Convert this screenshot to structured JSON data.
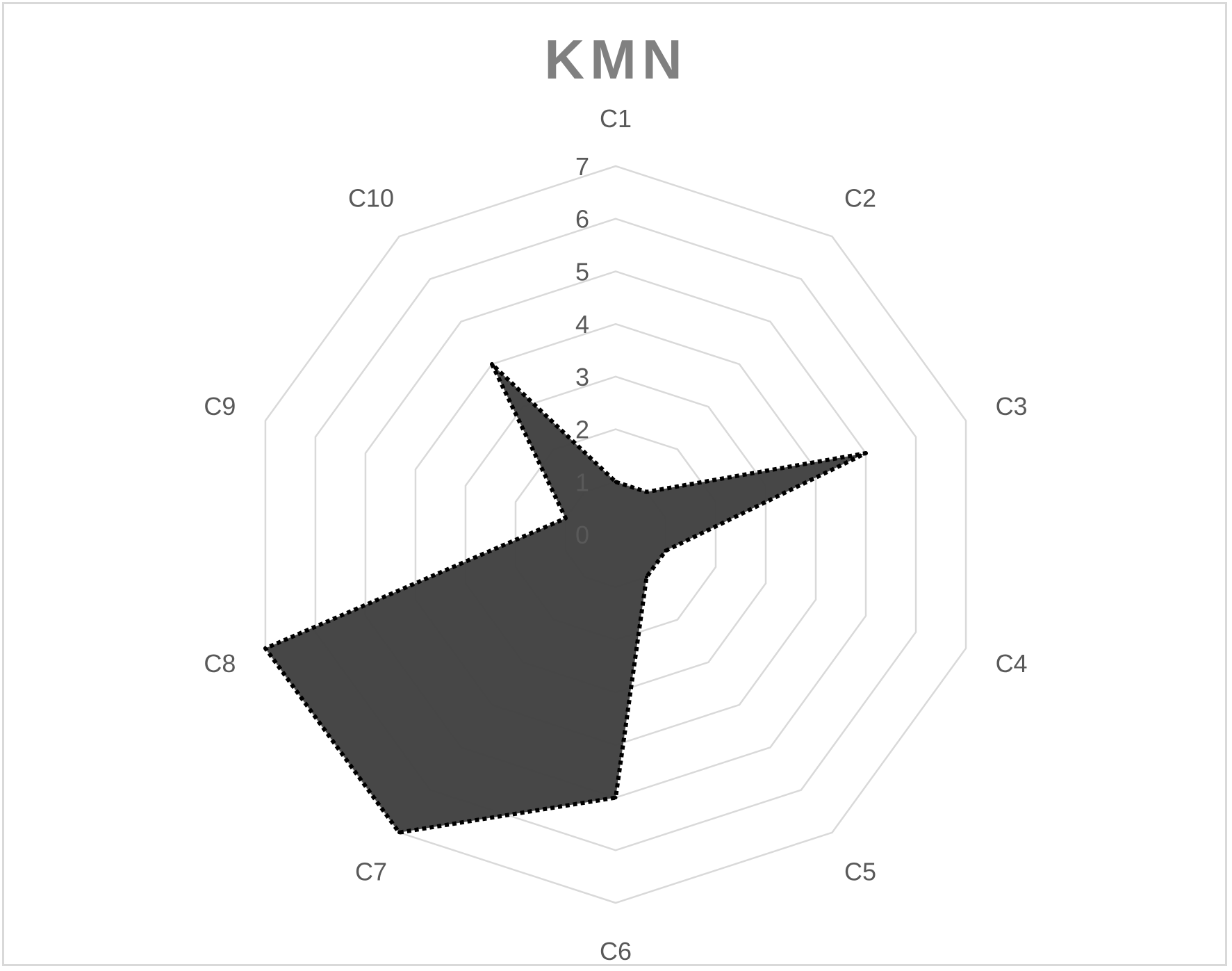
{
  "chart_data": {
    "type": "radar",
    "title": "KMN",
    "categories": [
      "C1",
      "C2",
      "C3",
      "C4",
      "C5",
      "C6",
      "C7",
      "C8",
      "C9",
      "C10"
    ],
    "series": [
      {
        "values": [
          1.0,
          1.0,
          5.0,
          1.0,
          1.0,
          5.0,
          7.0,
          7.0,
          1.0,
          4.0
        ]
      }
    ],
    "rlim": [
      0,
      7
    ],
    "rticks": [
      0,
      1,
      2,
      3,
      4,
      5,
      6,
      7
    ],
    "colors": {
      "fill": "#404040",
      "line": "#000000",
      "grid": "#d9d9d9",
      "title": "#808080",
      "labels": "#595959"
    },
    "line_style": "dotted",
    "legend": "none"
  }
}
